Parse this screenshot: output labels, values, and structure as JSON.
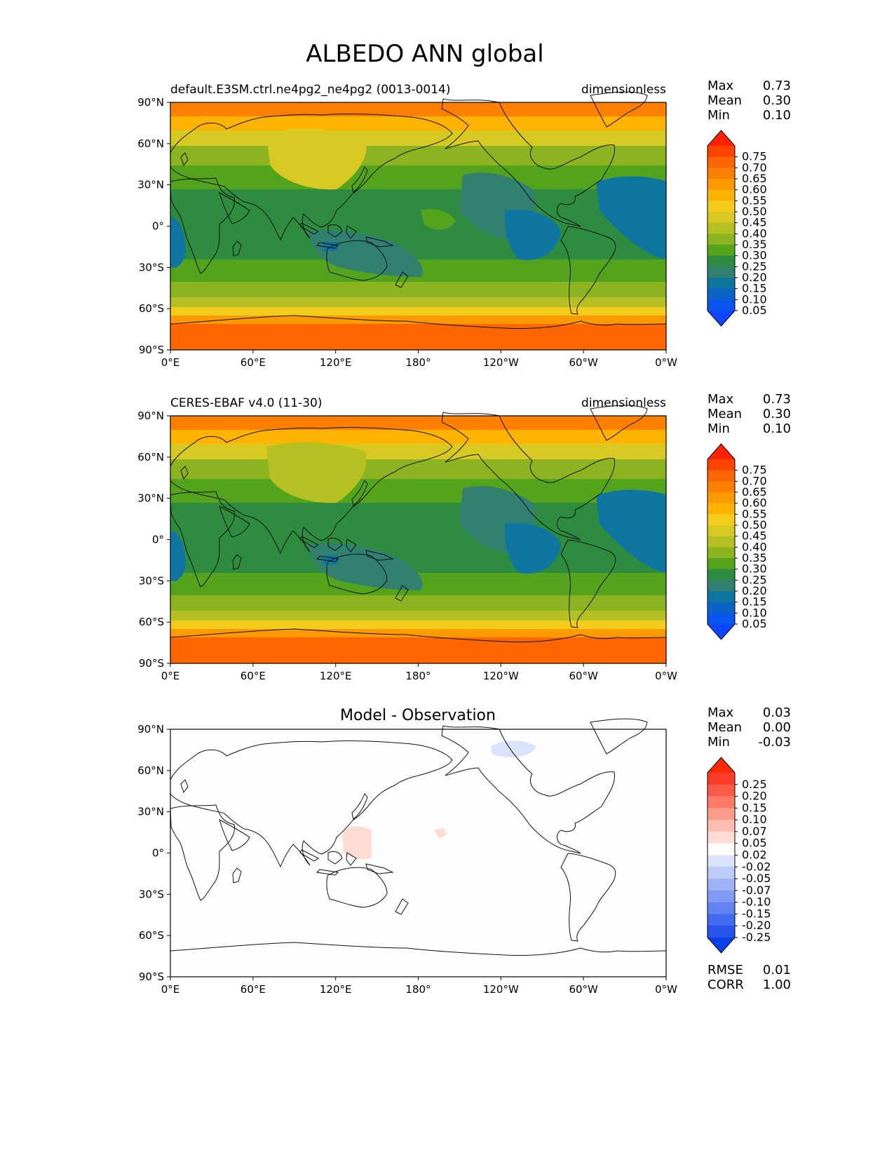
{
  "figure": {
    "title": "ALBEDO ANN global"
  },
  "axes": {
    "lat_ticks": [
      "90°N",
      "60°N",
      "30°N",
      "0°",
      "30°S",
      "60°S",
      "90°S"
    ],
    "lon_ticks": [
      "0°E",
      "60°E",
      "120°E",
      "180°",
      "120°W",
      "60°W",
      "0°W"
    ]
  },
  "panels": [
    {
      "left_title": "default.E3SM.ctrl.ne4pg2_ne4pg2 (0013-0014)",
      "center_title": "",
      "right_title": "dimensionless",
      "stats": [
        {
          "label": "Max",
          "value": "0.73"
        },
        {
          "label": "Mean",
          "value": "0.30"
        },
        {
          "label": "Min",
          "value": "0.10"
        }
      ]
    },
    {
      "left_title": "CERES-EBAF v4.0 (11-30)",
      "center_title": "",
      "right_title": "dimensionless",
      "stats": [
        {
          "label": "Max",
          "value": "0.73"
        },
        {
          "label": "Mean",
          "value": "0.30"
        },
        {
          "label": "Min",
          "value": "0.10"
        }
      ]
    },
    {
      "left_title": "",
      "center_title": "Model - Observation",
      "right_title": "",
      "stats": [
        {
          "label": "Max",
          "value": "0.03"
        },
        {
          "label": "Mean",
          "value": "0.00"
        },
        {
          "label": "Min",
          "value": "-0.03"
        }
      ],
      "extra_stats": [
        {
          "label": "RMSE",
          "value": "0.01"
        },
        {
          "label": "CORR",
          "value": "1.00"
        }
      ]
    }
  ],
  "colorbars": {
    "field": {
      "labels": [
        "0.75",
        "0.70",
        "0.65",
        "0.60",
        "0.55",
        "0.50",
        "0.45",
        "0.40",
        "0.35",
        "0.30",
        "0.25",
        "0.20",
        "0.15",
        "0.10",
        "0.05"
      ],
      "colors": [
        "#ff2200",
        "#ff4400",
        "#ff6600",
        "#ff8000",
        "#ff9900",
        "#ffb300",
        "#f4cc1c",
        "#d8c822",
        "#b7c022",
        "#8cb420",
        "#53a31c",
        "#2e8c40",
        "#318070",
        "#0e76a0",
        "#0b63c8",
        "#0a55ef",
        "#0a47ff"
      ]
    },
    "diff": {
      "labels": [
        "0.25",
        "0.20",
        "0.15",
        "0.10",
        "0.07",
        "0.05",
        "0.02",
        "-0.02",
        "-0.05",
        "-0.07",
        "-0.10",
        "-0.15",
        "-0.20",
        "-0.25"
      ],
      "colors": [
        "#ff2a00",
        "#ff3c28",
        "#ff5a48",
        "#ff7a68",
        "#ff9d8d",
        "#ffbcb1",
        "#ffdcd5",
        "#ffffff",
        "#dae3fb",
        "#bccbf8",
        "#9eb3f6",
        "#809bf3",
        "#6283f1",
        "#436bef",
        "#2553ec",
        "#0a40ea"
      ]
    }
  }
}
